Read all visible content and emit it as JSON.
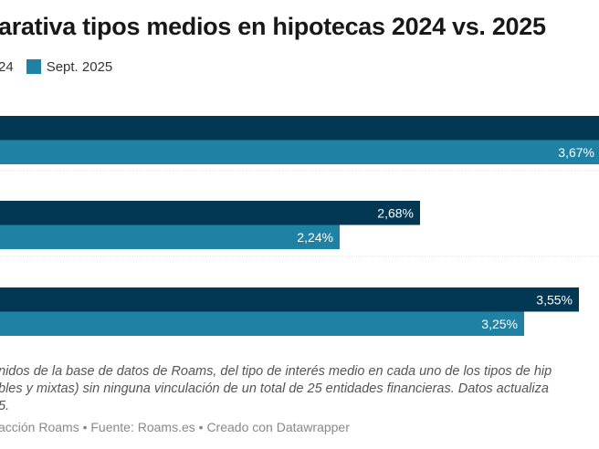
{
  "chart_data": {
    "type": "bar",
    "orientation": "horizontal",
    "title": "arativa tipos medios en hipotecas 2024 vs. 2025",
    "categories": [
      "",
      "",
      ""
    ],
    "series": [
      {
        "name": "24",
        "color": "#033855",
        "values": [
          null,
          2.68,
          3.55
        ],
        "labels": [
          "",
          "2,68%",
          "3,55%"
        ]
      },
      {
        "name": "Sept. 2025",
        "color": "#1f81a3",
        "values": [
          3.67,
          2.24,
          3.25
        ],
        "labels": [
          "3,67%",
          "2,24%",
          "3,25%"
        ]
      }
    ],
    "xlabel": "",
    "ylabel": "",
    "unit": "%",
    "grid": false,
    "legend": "top-left",
    "note": "First dark bar extends past the visible crop; its value label is not visible."
  },
  "legend": {
    "items": [
      {
        "label": "24",
        "color": "#033855"
      },
      {
        "label": "Sept. 2025",
        "color": "#1f81a3"
      }
    ]
  },
  "notes": {
    "lines": [
      "nidos de la base de datos de Roams, del tipo de interés medio en cada uno de los tipos de hip",
      "bles y mixtas) sin ninguna vinculación de un total de 25 entidades financieras. Datos actualiza",
      "5."
    ]
  },
  "source": "acción Roams • Fuente: Roams.es • Creado con Datawrapper"
}
